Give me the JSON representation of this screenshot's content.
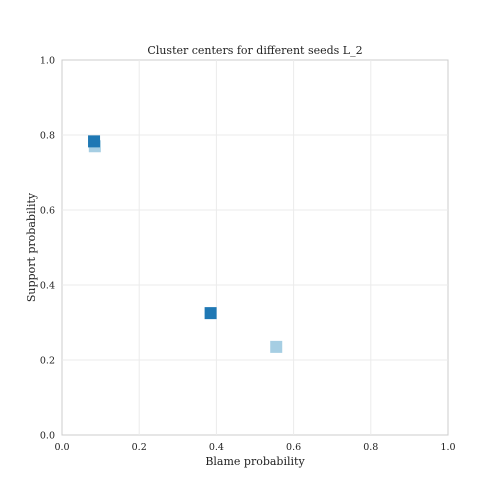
{
  "chart_data": {
    "type": "scatter",
    "title": "Cluster centers for different seeds L_2",
    "xlabel": "Blame probability",
    "ylabel": "Support probability",
    "xlim": [
      0.0,
      1.0
    ],
    "ylim": [
      0.0,
      1.0
    ],
    "xticks": [
      "0.0",
      "0.2",
      "0.4",
      "0.6",
      "0.8",
      "1.0"
    ],
    "yticks": [
      "0.0",
      "0.2",
      "0.4",
      "0.6",
      "0.8",
      "1.0"
    ],
    "grid": true,
    "marker": "square",
    "series": [
      {
        "color": "#a6cee3",
        "points": [
          {
            "x": 0.085,
            "y": 0.77
          },
          {
            "x": 0.555,
            "y": 0.235
          }
        ]
      },
      {
        "color": "#1f78b4",
        "points": [
          {
            "x": 0.083,
            "y": 0.783
          },
          {
            "x": 0.385,
            "y": 0.325
          }
        ]
      }
    ]
  }
}
